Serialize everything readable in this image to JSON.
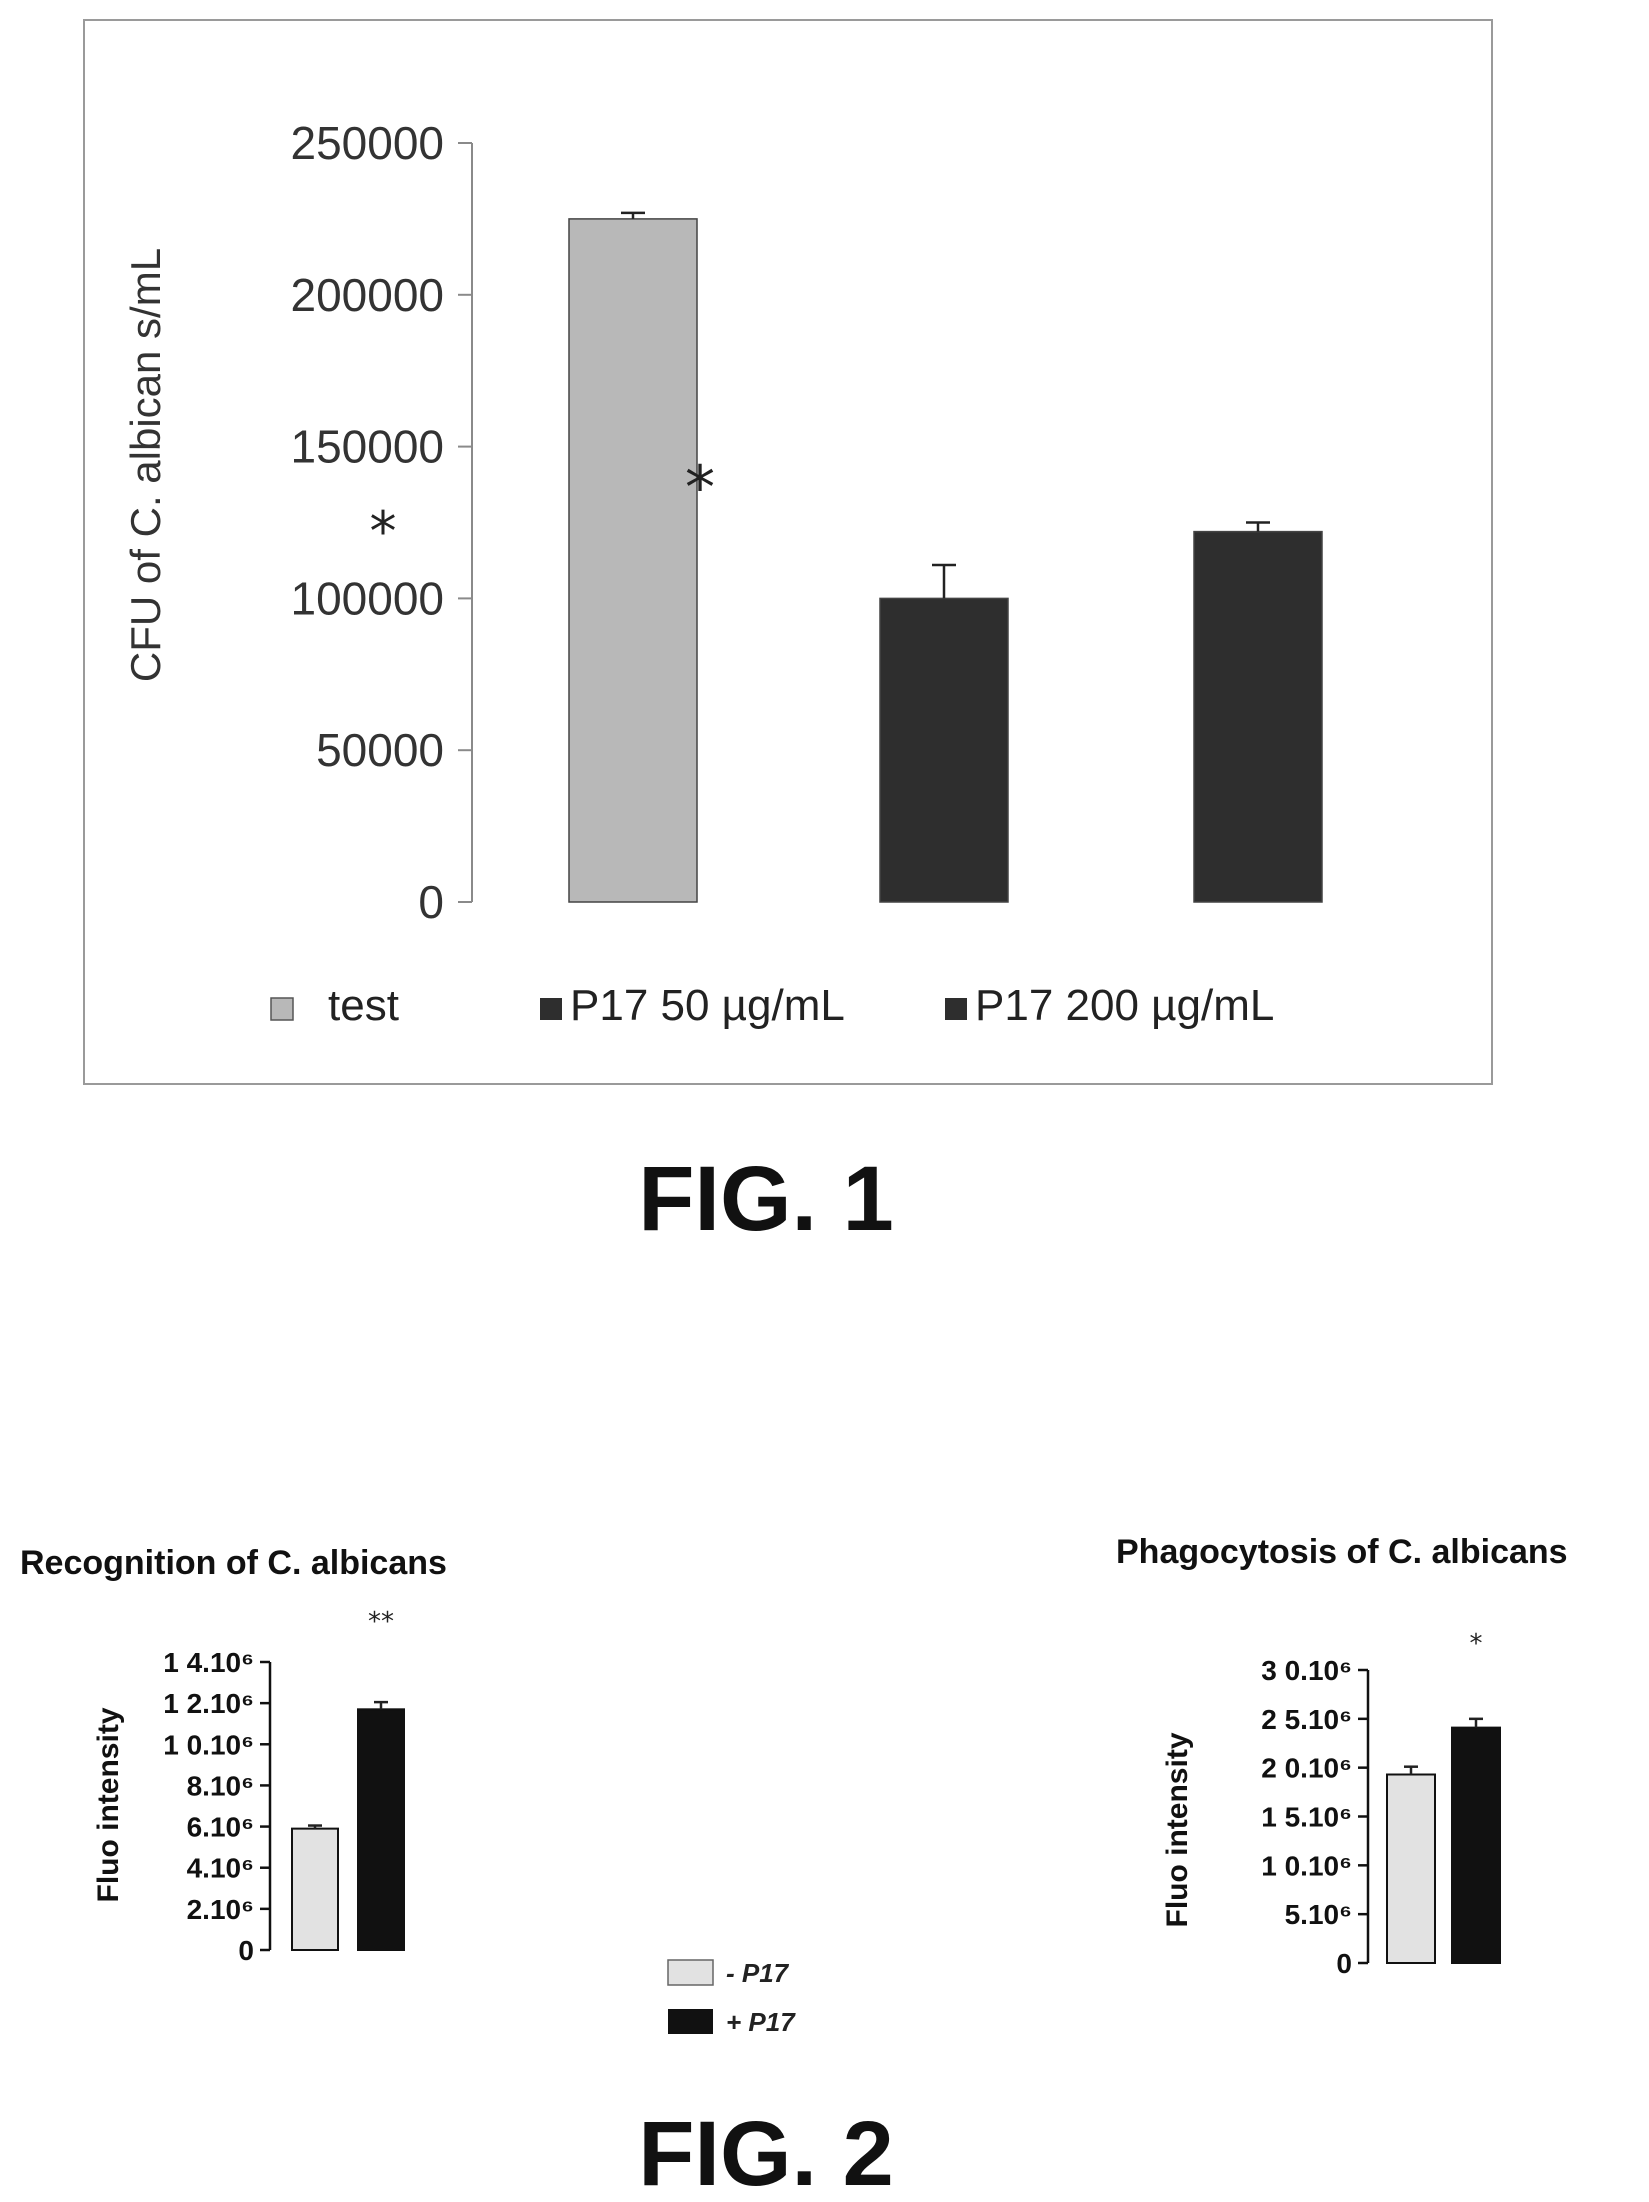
{
  "figures": [
    {
      "label": "FIG. 1"
    },
    {
      "label": "FIG. 2"
    }
  ],
  "chart_data": [
    {
      "type": "bar",
      "ylabel": "CFU of C. albican s/mL",
      "ylim": [
        0,
        250000
      ],
      "yticks": [
        "250000",
        "200000",
        "150000",
        "100000",
        "50000",
        "0"
      ],
      "yticks_values": [
        250000,
        200000,
        150000,
        100000,
        50000,
        0
      ],
      "categories": [
        "test",
        "P17 50 µg/mL",
        "P17 200 µg/mL"
      ],
      "values": [
        225000,
        100000,
        122000
      ],
      "errors": [
        2000,
        11000,
        3000
      ],
      "colors": [
        "#b8b8b8",
        "#2e2e2e",
        "#2e2e2e"
      ],
      "legend": [
        "test",
        "P17 50 µg/mL",
        "P17 200 µg/mL"
      ],
      "legend_position": "bottom",
      "annotations": [
        "*",
        "*"
      ],
      "grid": false
    },
    {
      "type": "bar",
      "title": "Recognition of C. albicans",
      "ylabel": "Fluo intensity",
      "ylim": [
        0,
        14000000
      ],
      "yticks": [
        "1 4.10⁶",
        "1 2.10⁶",
        "1 0.10⁶",
        "8.10⁶",
        "6.10⁶",
        "4.10⁶",
        "2.10⁶",
        "0"
      ],
      "yticks_values": [
        14000000,
        12000000,
        10000000,
        8000000,
        6000000,
        4000000,
        2000000,
        0
      ],
      "categories": [
        "- P17",
        "+ P17"
      ],
      "values": [
        5900000,
        11700000
      ],
      "errors": [
        150000,
        350000
      ],
      "colors": [
        "#e2e2e2",
        "#111111"
      ],
      "significance": "**",
      "grid": false
    },
    {
      "type": "bar",
      "title": "Phagocytosis of C. albicans",
      "ylabel": "Fluo intensity",
      "ylim": [
        0,
        30000000
      ],
      "yticks": [
        "3 0.10⁶",
        "2 5.10⁶",
        "2 0.10⁶",
        "1 5.10⁶",
        "1 0.10⁶",
        "5.10⁶",
        "0"
      ],
      "yticks_values": [
        30000000,
        25000000,
        20000000,
        15000000,
        10000000,
        5000000,
        0
      ],
      "categories": [
        "- P17",
        "+ P17"
      ],
      "values": [
        19300000,
        24100000
      ],
      "errors": [
        800000,
        900000
      ],
      "colors": [
        "#e2e2e2",
        "#111111"
      ],
      "significance": "*",
      "grid": false
    }
  ],
  "shared_legend": {
    "entries": [
      {
        "label": "- P17",
        "color": "#e2e2e2"
      },
      {
        "label": "+ P17",
        "color": "#111111"
      }
    ]
  }
}
